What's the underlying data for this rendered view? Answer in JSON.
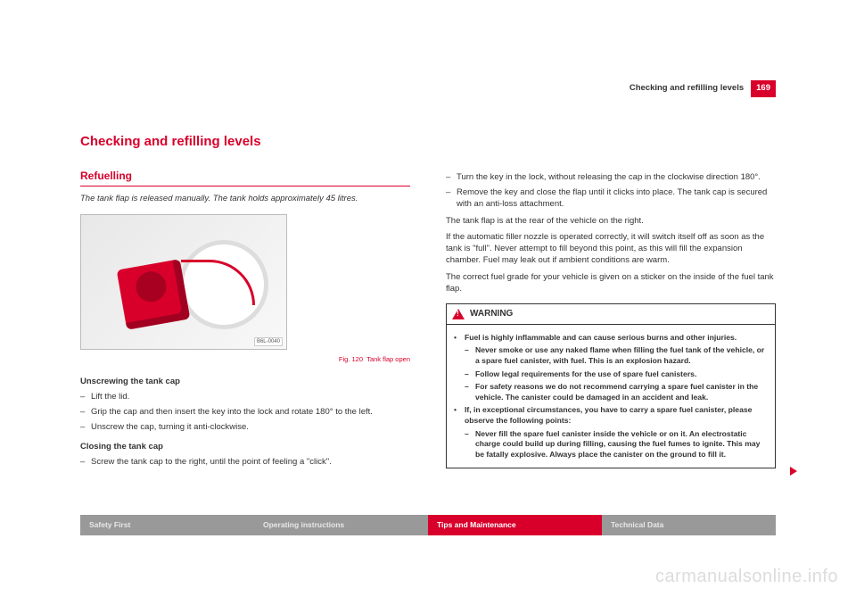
{
  "header": {
    "running_title": "Checking and refilling levels",
    "page_number": "169"
  },
  "chapter_title": "Checking and refilling levels",
  "section": {
    "title": "Refuelling",
    "lead": "The tank flap is released manually. The tank holds approximately 45 litres."
  },
  "figure": {
    "code": "B6L-0040",
    "caption_prefix": "Fig. 120",
    "caption_text": "Tank flap open"
  },
  "left": {
    "sub1": "Unscrewing the tank cap",
    "s1": "Lift the lid.",
    "s2": "Grip the cap and then insert the key into the lock and rotate 180° to the left.",
    "s3": "Unscrew the cap, turning it anti-clockwise.",
    "sub2": "Closing the tank cap",
    "s4": "Screw the tank cap to the right, until the point of feeling a \"click\"."
  },
  "right": {
    "s5": "Turn the key in the lock, without releasing the cap in the clockwise direction 180°.",
    "s6": "Remove the key and close the flap until it clicks into place. The tank cap is secured with an anti-loss attachment.",
    "p1": "The tank flap is at the rear of the vehicle on the right.",
    "p2": "If the automatic filler nozzle is operated correctly, it will switch itself off as soon as the tank is \"full\". Never attempt to fill beyond this point, as this will fill the expansion chamber. Fuel may leak out if ambient conditions are warm.",
    "p3": "The correct fuel grade for your vehicle is given on a sticker on the inside of the fuel tank flap."
  },
  "warning": {
    "label": "WARNING",
    "b1": "Fuel is highly inflammable and can cause serious burns and other injuries.",
    "b1a": "Never smoke or use any naked flame when filling the fuel tank of the vehicle, or a spare fuel canister, with fuel. This is an explosion hazard.",
    "b1b": "Follow legal requirements for the use of spare fuel canisters.",
    "b1c": "For safety reasons we do not recommend carrying a spare fuel canister in the vehicle. The canister could be damaged in an accident and leak.",
    "b2": "If, in exceptional circumstances, you have to carry a spare fuel canister, please observe the following points:",
    "b2a": "Never fill the spare fuel canister inside the vehicle or on it. An electrostatic charge could build up during filling, causing the fuel fumes to ignite. This may be fatally explosive. Always place the canister on the ground to fill it."
  },
  "footer": {
    "t1": "Safety First",
    "t2": "Operating instructions",
    "t3": "Tips and Maintenance",
    "t4": "Technical Data"
  },
  "watermark": "carmanualsonline.info"
}
